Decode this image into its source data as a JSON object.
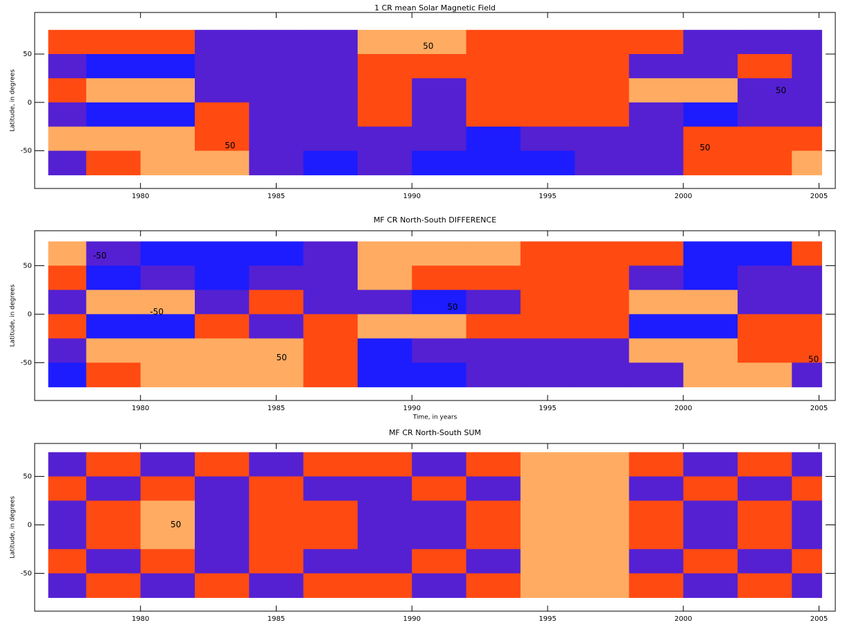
{
  "chart_data": [
    {
      "type": "contour",
      "title": "1 CR mean Solar Magnetic Field",
      "ylabel": "Latitude, in degrees",
      "xlim": [
        1976.1,
        2005.6
      ],
      "ylim": [
        -89,
        93
      ],
      "xticks": [
        1980,
        1985,
        1990,
        1995,
        2000,
        2005
      ],
      "yticks": [
        -50,
        0,
        50
      ],
      "levels": [
        -50,
        0,
        50
      ],
      "colors": [
        "#1c1cff",
        "#5420d2",
        "#ff4a12",
        "#ffab62"
      ],
      "x_edges": [
        1976.6,
        1978,
        1980,
        1982,
        1984,
        1986,
        1988,
        1990,
        1992,
        1994,
        1996,
        1998,
        2000,
        2002,
        2004,
        2005.1
      ],
      "lat_edges": [
        75,
        50,
        25,
        0,
        -25,
        -50,
        -75
      ],
      "z": [
        [
          30,
          25,
          20,
          -20,
          -40,
          -30,
          60,
          70,
          40,
          30,
          30,
          20,
          -40,
          -50,
          -20
        ],
        [
          -40,
          -60,
          -60,
          -50,
          -40,
          -20,
          20,
          40,
          30,
          30,
          20,
          -30,
          -40,
          20,
          -30
        ],
        [
          40,
          70,
          60,
          -30,
          -40,
          -20,
          30,
          -20,
          30,
          30,
          20,
          60,
          70,
          -20,
          -30
        ],
        [
          -40,
          -70,
          -60,
          30,
          -40,
          -40,
          40,
          -30,
          20,
          30,
          20,
          -30,
          -60,
          -40,
          -30
        ],
        [
          50,
          70,
          60,
          40,
          -30,
          -30,
          -40,
          -50,
          -60,
          -40,
          -30,
          -20,
          40,
          30,
          20
        ],
        [
          -40,
          20,
          60,
          60,
          -40,
          -60,
          -40,
          -70,
          -70,
          -60,
          -50,
          -30,
          30,
          40,
          50
        ]
      ],
      "contour_labels": [
        {
          "year": 1983.3,
          "lat": -45,
          "value": 50
        },
        {
          "year": 1990.6,
          "lat": 58,
          "value": 50
        },
        {
          "year": 2000.8,
          "lat": -47,
          "value": 50
        },
        {
          "year": 2003.6,
          "lat": 12,
          "value": 50
        }
      ]
    },
    {
      "type": "contour",
      "title": "MF CR North-South DIFFERENCE",
      "ylabel": "Latitude, in degrees",
      "xlabel": "Time, in years",
      "xlim": [
        1976.1,
        2005.6
      ],
      "ylim": [
        -89,
        86
      ],
      "xticks": [
        1980,
        1985,
        1990,
        1995,
        2000,
        2005
      ],
      "yticks": [
        -50,
        0,
        50
      ],
      "levels": [
        -50,
        0,
        50
      ],
      "colors": [
        "#1c1cff",
        "#5420d2",
        "#ff4a12",
        "#ffab62"
      ],
      "x_edges": [
        1976.6,
        1978,
        1980,
        1982,
        1984,
        1986,
        1988,
        1990,
        1992,
        1994,
        1996,
        1998,
        2000,
        2002,
        2004,
        2005.1
      ],
      "lat_edges": [
        75,
        50,
        25,
        0,
        -25,
        -50,
        -75
      ],
      "z": [
        [
          60,
          -40,
          -80,
          -80,
          -60,
          -40,
          70,
          60,
          50,
          40,
          30,
          40,
          -60,
          -60,
          40
        ],
        [
          40,
          -60,
          -50,
          -60,
          -30,
          -40,
          60,
          40,
          30,
          20,
          20,
          -50,
          -60,
          -40,
          -40
        ],
        [
          -20,
          80,
          70,
          -30,
          20,
          -30,
          -50,
          -60,
          -20,
          20,
          20,
          60,
          60,
          -30,
          -30
        ],
        [
          20,
          -80,
          -70,
          30,
          -20,
          30,
          50,
          60,
          20,
          20,
          20,
          -60,
          -60,
          30,
          30
        ],
        [
          -40,
          60,
          50,
          60,
          70,
          40,
          -60,
          -40,
          -30,
          -20,
          -20,
          50,
          60,
          40,
          40
        ],
        [
          -60,
          40,
          80,
          80,
          70,
          40,
          -70,
          -60,
          -50,
          -40,
          -30,
          -40,
          60,
          60,
          -40
        ]
      ],
      "contour_labels": [
        {
          "year": 1978.5,
          "lat": 60,
          "value": -50
        },
        {
          "year": 1980.6,
          "lat": 2,
          "value": -50
        },
        {
          "year": 1985.2,
          "lat": -45,
          "value": 50
        },
        {
          "year": 1991.5,
          "lat": 7,
          "value": 50
        },
        {
          "year": 2004.8,
          "lat": -47,
          "value": 50
        }
      ]
    },
    {
      "type": "contour",
      "title": "MF CR North-South SUM",
      "ylabel": "Latitude, in degrees",
      "xlim": [
        1976.1,
        2005.6
      ],
      "ylim": [
        -89,
        84
      ],
      "xticks": [
        1980,
        1985,
        1990,
        1995,
        2000,
        2005
      ],
      "yticks": [
        -50,
        0,
        50
      ],
      "levels": [
        -50,
        0,
        50
      ],
      "colors": [
        "#1c1cff",
        "#5420d2",
        "#ff4a12",
        "#ffab62"
      ],
      "x_edges": [
        1976.6,
        1978,
        1980,
        1982,
        1984,
        1986,
        1988,
        1990,
        1992,
        1994,
        1996,
        1998,
        2000,
        2002,
        2004,
        2005.1
      ],
      "lat_edges": [
        75,
        50,
        25,
        0,
        -25,
        -50,
        -75
      ],
      "z": [
        [
          -30,
          30,
          -40,
          30,
          -30,
          20,
          40,
          -30,
          30,
          60,
          50,
          30,
          -30,
          30,
          -30
        ],
        [
          30,
          -40,
          40,
          -30,
          40,
          -30,
          -40,
          30,
          -30,
          50,
          60,
          -30,
          40,
          -30,
          30
        ],
        [
          -30,
          40,
          60,
          -40,
          30,
          40,
          -30,
          -40,
          30,
          60,
          60,
          30,
          -40,
          30,
          -30
        ],
        [
          -30,
          40,
          60,
          -40,
          30,
          40,
          -30,
          -40,
          30,
          60,
          60,
          30,
          -40,
          30,
          -30
        ],
        [
          30,
          -40,
          40,
          -30,
          40,
          -30,
          -40,
          30,
          -30,
          50,
          60,
          -30,
          40,
          -30,
          30
        ],
        [
          -30,
          30,
          -40,
          30,
          -30,
          20,
          40,
          -30,
          30,
          60,
          50,
          30,
          -30,
          30,
          -30
        ]
      ],
      "contour_labels": [
        {
          "year": 1981.3,
          "lat": 0,
          "value": 50
        }
      ]
    }
  ]
}
